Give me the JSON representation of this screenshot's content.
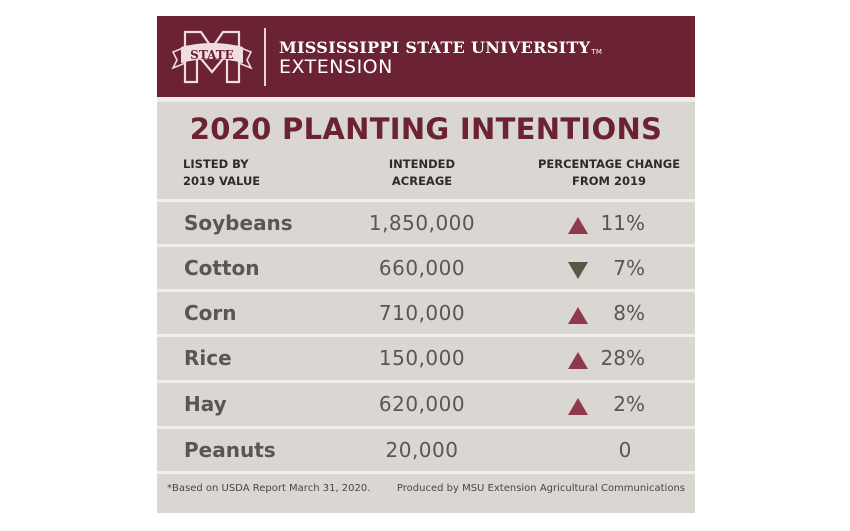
{
  "header": {
    "logo_text": "STATE",
    "university": "MISSISSIPPI STATE UNIVERSITY",
    "trademark": "TM",
    "unit": "EXTENSION"
  },
  "title": "2020 PLANTING INTENTIONS",
  "columns": {
    "crop_line1": "LISTED BY",
    "crop_line2": "2019 VALUE",
    "acreage_line1": "INTENDED",
    "acreage_line2": "ACREAGE",
    "change_line1": "PERCENTAGE CHANGE",
    "change_line2": "FROM 2019"
  },
  "rows": [
    {
      "crop": "Soybeans",
      "acreage": "1,850,000",
      "direction": "up",
      "change": "11%"
    },
    {
      "crop": "Cotton",
      "acreage": "660,000",
      "direction": "down",
      "change": "7%"
    },
    {
      "crop": "Corn",
      "acreage": "710,000",
      "direction": "up",
      "change": "8%"
    },
    {
      "crop": "Rice",
      "acreage": "150,000",
      "direction": "up",
      "change": "28%"
    },
    {
      "crop": "Hay",
      "acreage": "620,000",
      "direction": "up",
      "change": "2%"
    },
    {
      "crop": "Peanuts",
      "acreage": "20,000",
      "direction": "none",
      "change": "0"
    }
  ],
  "footer": {
    "note": "*Based on USDA Report March 31, 2020.",
    "credit": "Produced by MSU Extension Agricultural Communications"
  },
  "colors": {
    "maroon": "#6b2232",
    "up_arrow": "#8f3a4c",
    "down_arrow": "#5a5646",
    "panel": "#dad6d2"
  }
}
